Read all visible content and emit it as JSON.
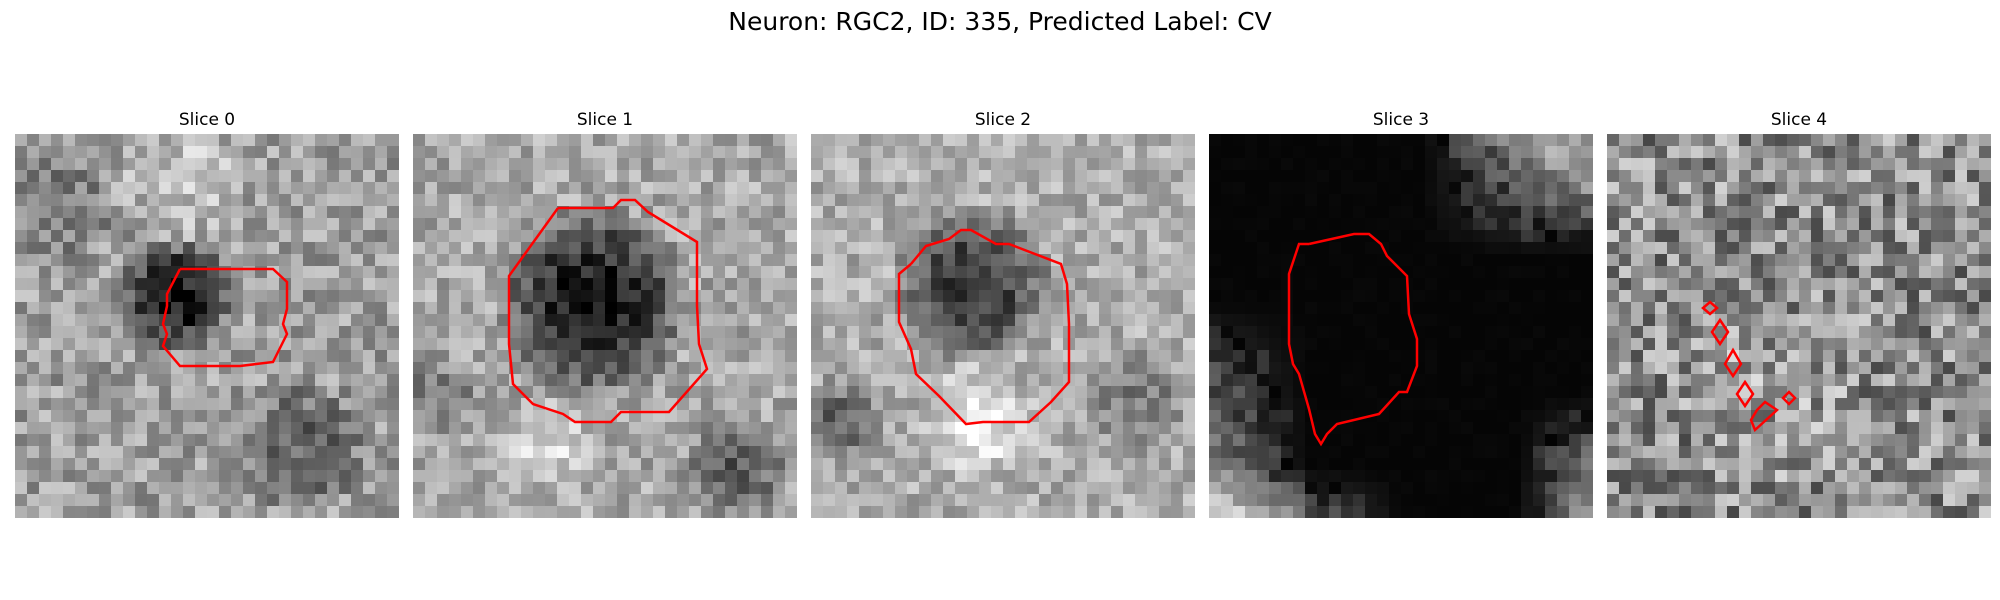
{
  "figure": {
    "title": "Neuron: RGC2, ID: 335, Predicted Label: CV"
  },
  "colors": {
    "contour": "#ff0000",
    "background": "#ffffff"
  },
  "panels": [
    {
      "title": "Slice 0",
      "tone": "medium-light gray texture, dark round cell at center"
    },
    {
      "title": "Slice 1",
      "tone": "light gray texture, large dark round cell"
    },
    {
      "title": "Slice 2",
      "tone": "light gray texture, dark round cell with bright rim below"
    },
    {
      "title": "Slice 3",
      "tone": "mostly black with gray texture in corners"
    },
    {
      "title": "Slice 4",
      "tone": "noisy gray texture, small scattered contours"
    }
  ]
}
